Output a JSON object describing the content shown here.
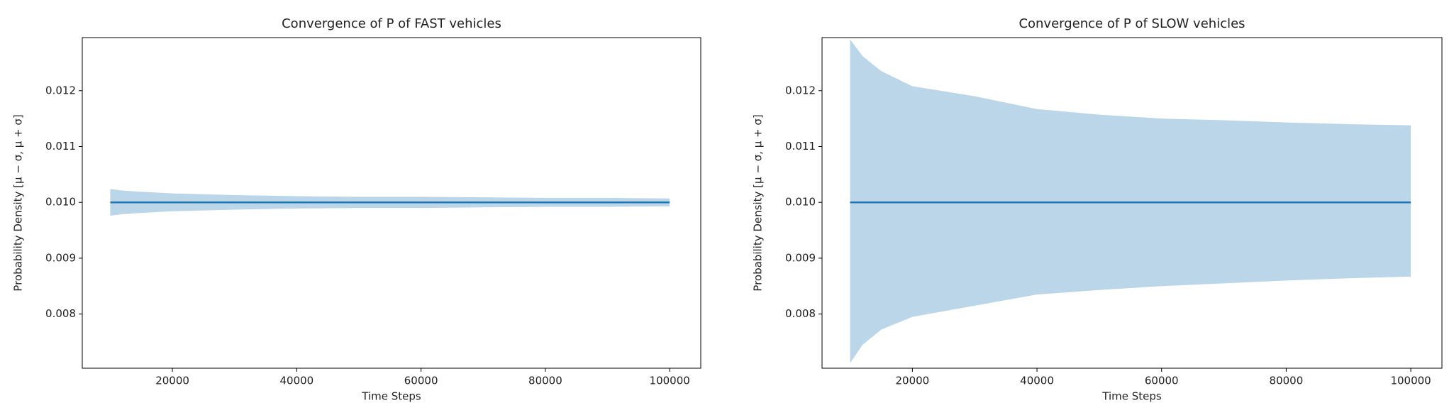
{
  "chart_data": [
    {
      "type": "band",
      "title": "Convergence of P of FAST vehicles",
      "xlabel": "Time Steps",
      "ylabel": "Probability Density [μ − σ, μ + σ]",
      "color": "#1f77b4",
      "x": [
        10000,
        12000,
        15000,
        20000,
        30000,
        40000,
        50000,
        60000,
        70000,
        80000,
        90000,
        100000
      ],
      "mean": [
        0.01,
        0.01,
        0.01,
        0.01,
        0.01,
        0.01,
        0.01,
        0.01,
        0.01,
        0.01,
        0.01,
        0.01
      ],
      "upper": [
        0.01024,
        0.01021,
        0.01019,
        0.01016,
        0.01013,
        0.01011,
        0.0101,
        0.0101,
        0.01009,
        0.01008,
        0.01008,
        0.01007
      ],
      "lower": [
        0.00976,
        0.00979,
        0.00981,
        0.00984,
        0.00987,
        0.00989,
        0.0099,
        0.0099,
        0.00991,
        0.00992,
        0.00992,
        0.00993
      ],
      "xlim": [
        5500,
        105000
      ],
      "ylim": [
        0.00703,
        0.01295
      ],
      "xticks": [
        20000,
        40000,
        60000,
        80000,
        100000
      ],
      "yticks": [
        0.008,
        0.009,
        {
          "value": 0.01,
          "label": "0.010"
        },
        0.011,
        0.012
      ]
    },
    {
      "type": "band",
      "title": "Convergence of P of SLOW vehicles",
      "xlabel": "Time Steps",
      "ylabel": "Probability Density [μ − σ, μ + σ]",
      "color": "#1f77b4",
      "x": [
        10000,
        12000,
        15000,
        20000,
        30000,
        40000,
        50000,
        60000,
        70000,
        80000,
        90000,
        100000
      ],
      "mean": [
        0.01,
        0.01,
        0.01,
        0.01,
        0.01,
        0.01,
        0.01,
        0.01,
        0.01,
        0.01,
        0.01,
        0.01
      ],
      "upper": [
        0.01292,
        0.01262,
        0.01235,
        0.01208,
        0.0119,
        0.01167,
        0.01157,
        0.0115,
        0.01147,
        0.01143,
        0.0114,
        0.01138
      ],
      "lower": [
        0.00712,
        0.00745,
        0.00772,
        0.00795,
        0.00815,
        0.00835,
        0.00843,
        0.0085,
        0.00855,
        0.0086,
        0.00864,
        0.00867
      ],
      "xlim": [
        5500,
        105000
      ],
      "ylim": [
        0.00703,
        0.01295
      ],
      "xticks": [
        20000,
        40000,
        60000,
        80000,
        100000
      ],
      "yticks": [
        0.008,
        0.009,
        {
          "value": 0.01,
          "label": "0.010"
        },
        0.011,
        0.012
      ]
    }
  ]
}
